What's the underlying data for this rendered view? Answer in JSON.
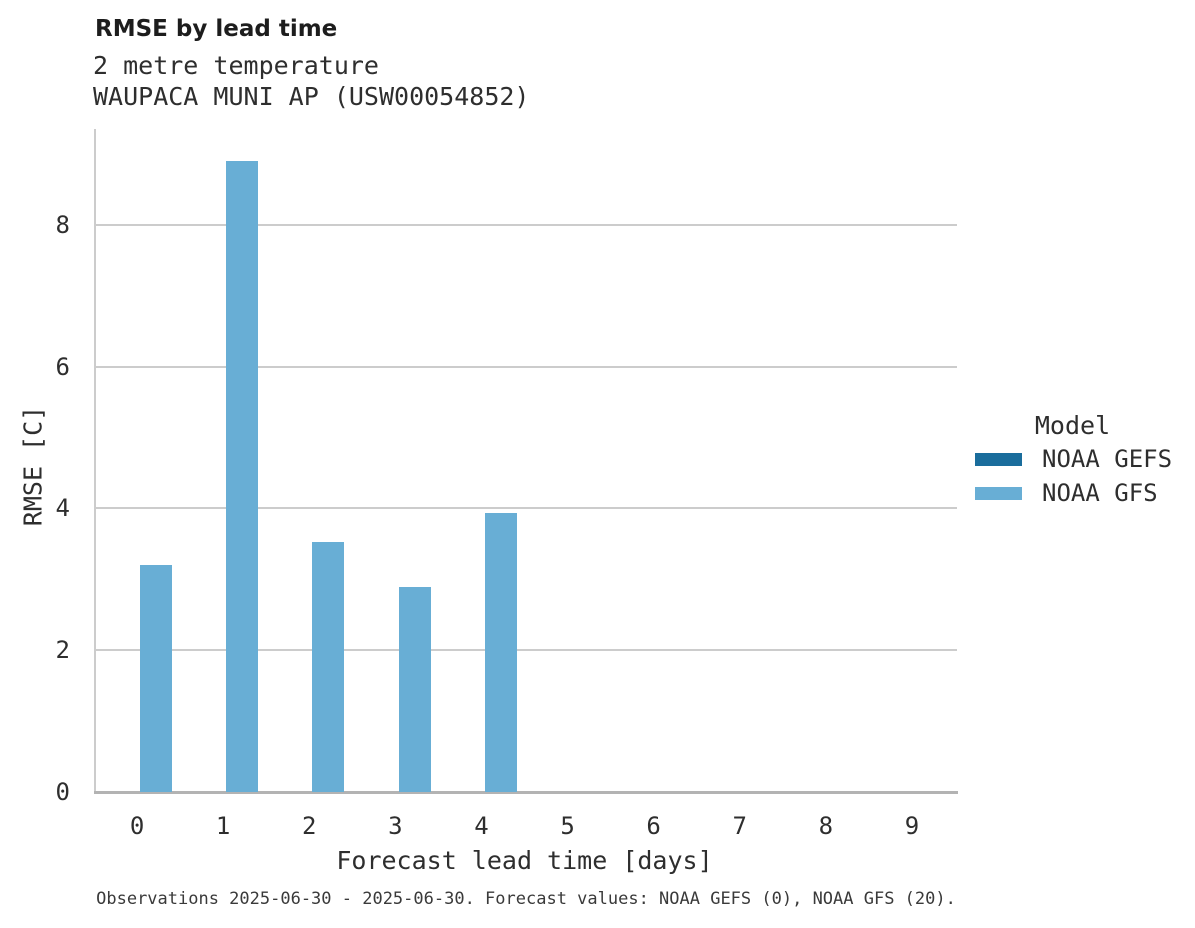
{
  "title": "RMSE by lead time",
  "subtitle_line1": "2 metre temperature",
  "subtitle_line2": "WAUPACA MUNI AP (USW00054852)",
  "footer": "Observations 2025-06-30 - 2025-06-30. Forecast values: NOAA GEFS (0), NOAA GFS (20).",
  "legend": {
    "title": "Model",
    "entries": [
      {
        "label": "NOAA GEFS",
        "color": "#1a6d9c"
      },
      {
        "label": "NOAA GFS",
        "color": "#68aed5"
      }
    ]
  },
  "colors": {
    "gefs": "#1a6d9c",
    "gfs": "#68aed5",
    "gridline": "#cccccc",
    "axis": "#b3b3b3"
  },
  "chart_data": {
    "type": "bar",
    "title": "RMSE by lead time",
    "subtitle": [
      "2 metre temperature",
      "WAUPACA MUNI AP (USW00054852)"
    ],
    "xlabel": "Forecast lead time [days]",
    "ylabel": "RMSE [C]",
    "categories": [
      "0",
      "1",
      "2",
      "3",
      "4",
      "5",
      "6",
      "7",
      "8",
      "9"
    ],
    "series": [
      {
        "name": "NOAA GEFS",
        "color": "#1a6d9c",
        "values": []
      },
      {
        "name": "NOAA GFS",
        "color": "#68aed5",
        "values": [
          3.2,
          8.9,
          3.52,
          2.89,
          3.94,
          null,
          null,
          null,
          null,
          null
        ]
      }
    ],
    "ylim": [
      0,
      9.35
    ],
    "yticks": [
      0,
      2,
      4,
      6,
      8
    ],
    "grid": "horizontal",
    "legend_position": "right",
    "legend_title": "Model",
    "annotation": "Observations 2025-06-30 - 2025-06-30. Forecast values: NOAA GEFS (0), NOAA GFS (20)."
  }
}
